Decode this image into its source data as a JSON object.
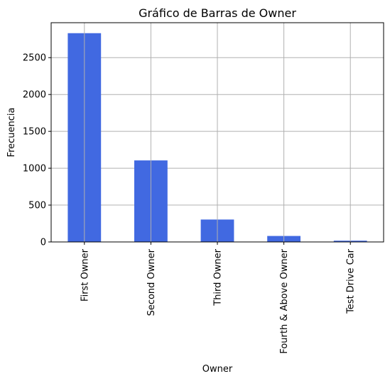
{
  "chart_data": {
    "type": "bar",
    "title": "Gráfico de Barras de Owner",
    "xlabel": "Owner",
    "ylabel": "Frecuencia",
    "categories": [
      "First Owner",
      "Second Owner",
      "Third Owner",
      "Fourth & Above Owner",
      "Test Drive Car"
    ],
    "values": [
      2832,
      1106,
      304,
      81,
      17
    ],
    "ylim": [
      0,
      2974
    ],
    "yticks": [
      0,
      500,
      1000,
      1500,
      2000,
      2500
    ],
    "grid": true,
    "bar_color": "#4169e1"
  }
}
